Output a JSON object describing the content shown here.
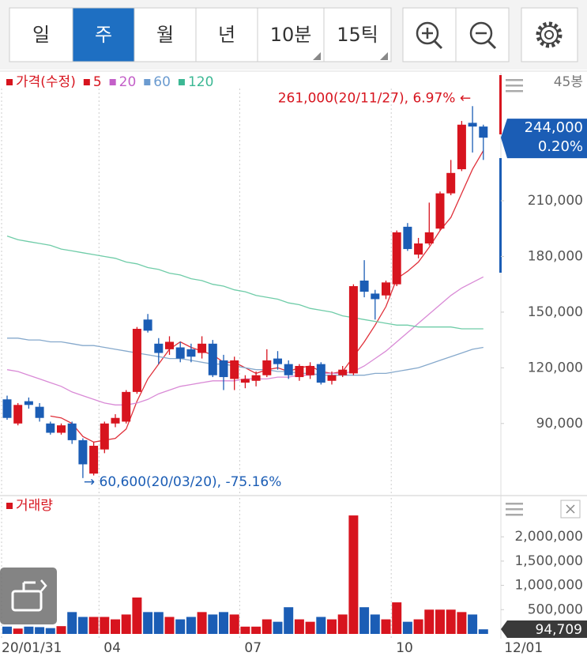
{
  "tabs": [
    {
      "label": "일"
    },
    {
      "label": "주"
    },
    {
      "label": "월"
    },
    {
      "label": "년"
    },
    {
      "label": "10분",
      "dropdown": true
    },
    {
      "label": "15틱",
      "dropdown": true
    }
  ],
  "active_tab": 1,
  "chart_data": [
    {
      "type": "candlestick",
      "name": "가격(수정)",
      "bar_count_label": "45봉",
      "up_color": "#d7141e",
      "down_color": "#1b5db5",
      "open": [
        103000,
        90000,
        102000,
        99000,
        90000,
        85000,
        90000,
        81000,
        63000,
        76000,
        90000,
        91000,
        107000,
        146000,
        133000,
        130000,
        131000,
        130000,
        128000,
        133000,
        124000,
        114000,
        112000,
        113000,
        116000,
        125000,
        122000,
        115000,
        116000,
        122000,
        113000,
        116000,
        117000,
        167000,
        160000,
        159000,
        165000,
        196000,
        181000,
        187000,
        195000,
        214000,
        227000,
        252000,
        250000
      ],
      "high": [
        105000,
        101000,
        104000,
        101000,
        91000,
        90000,
        91000,
        82000,
        80000,
        91000,
        95000,
        108000,
        142000,
        149000,
        136000,
        137000,
        134000,
        133000,
        137000,
        135000,
        127000,
        126000,
        116000,
        118000,
        130000,
        129000,
        124000,
        122000,
        123000,
        123000,
        118000,
        121000,
        165000,
        178000,
        162000,
        167000,
        194000,
        198000,
        190000,
        209000,
        215000,
        232000,
        253000,
        261000,
        251000
      ],
      "low": [
        92000,
        89000,
        98000,
        91000,
        84000,
        84000,
        79000,
        60600,
        62000,
        74000,
        88000,
        90000,
        106000,
        139000,
        122000,
        127000,
        123000,
        123000,
        125000,
        115000,
        108000,
        108000,
        109000,
        110000,
        115000,
        119000,
        114000,
        113000,
        114000,
        111000,
        111000,
        115000,
        116000,
        158000,
        146000,
        157000,
        164000,
        183000,
        179000,
        186000,
        194000,
        213000,
        226000,
        236000,
        232000
      ],
      "close": [
        93000,
        100000,
        100000,
        93000,
        85000,
        89000,
        81000,
        68000,
        78000,
        90000,
        93000,
        107000,
        141000,
        140000,
        128000,
        134000,
        125000,
        126000,
        133000,
        116000,
        115000,
        124000,
        114000,
        116000,
        124000,
        122000,
        116000,
        121000,
        121000,
        112000,
        116000,
        119000,
        164000,
        161000,
        157000,
        166000,
        193000,
        184000,
        187000,
        193000,
        214000,
        225000,
        251000,
        250000,
        244000
      ],
      "series": [
        {
          "name": "5",
          "color": "#e0303a",
          "legend_color": "#d7141e",
          "values": [
            null,
            null,
            null,
            null,
            94000,
            93000,
            90000,
            83000,
            80000,
            81000,
            82000,
            87000,
            102000,
            114000,
            122000,
            130000,
            134000,
            131000,
            129000,
            127000,
            123000,
            123000,
            120000,
            117000,
            119000,
            120000,
            118000,
            120000,
            121000,
            118000,
            117000,
            118000,
            126000,
            134000,
            143000,
            153000,
            168000,
            172000,
            177000,
            185000,
            194000,
            201000,
            214000,
            227000,
            237000
          ]
        },
        {
          "name": "20",
          "color": "#d98ad6",
          "legend_color": "#c35fc8",
          "values": [
            119000,
            118000,
            116000,
            114000,
            112000,
            110000,
            107000,
            105000,
            103000,
            101000,
            100000,
            100000,
            101000,
            103000,
            106000,
            108000,
            110000,
            111000,
            112000,
            113000,
            113000,
            113000,
            114000,
            114000,
            114000,
            115000,
            115000,
            116000,
            116000,
            117000,
            117000,
            117000,
            118000,
            121000,
            125000,
            129000,
            134000,
            139000,
            144000,
            149000,
            154000,
            159000,
            163000,
            166000,
            169000
          ]
        },
        {
          "name": "60",
          "color": "#86a9cc",
          "legend_color": "#6b9bd0",
          "values": [
            136000,
            136000,
            135000,
            135000,
            134000,
            134000,
            133000,
            132000,
            132000,
            131000,
            130000,
            129000,
            128000,
            127000,
            126000,
            125000,
            125000,
            124000,
            123000,
            122000,
            122000,
            121000,
            120000,
            119000,
            119000,
            118000,
            118000,
            117000,
            117000,
            116000,
            116000,
            116000,
            116000,
            116000,
            117000,
            117000,
            118000,
            119000,
            120000,
            122000,
            124000,
            126000,
            128000,
            130000,
            131000
          ]
        },
        {
          "name": "120",
          "color": "#6fcca8",
          "legend_color": "#3cb894",
          "values": [
            191000,
            189000,
            188000,
            187000,
            186000,
            184000,
            183000,
            182000,
            181000,
            180000,
            179000,
            177000,
            176000,
            174000,
            173000,
            171000,
            170000,
            168000,
            167000,
            165000,
            164000,
            162000,
            161000,
            159000,
            158000,
            157000,
            155000,
            154000,
            152000,
            151000,
            150000,
            148000,
            147000,
            146000,
            145000,
            144000,
            143000,
            143000,
            142000,
            142000,
            142000,
            142000,
            141000,
            141000,
            141000
          ]
        }
      ],
      "ylim": [
        52000,
        279000
      ],
      "yticks": [
        {
          "value": 90000,
          "label": "90,000"
        },
        {
          "value": 120000,
          "label": "120,000"
        },
        {
          "value": 150000,
          "label": "150,000"
        },
        {
          "value": 180000,
          "label": "180,000"
        },
        {
          "value": 210000,
          "label": "210,000"
        }
      ],
      "price_tag": "244,000",
      "change_tag": "0.20%",
      "high_annotation": "261,000(20/11/27), 6.97% ←",
      "low_annotation": "→ 60,600(20/03/20), -75.16%"
    },
    {
      "type": "bar",
      "name": "거래량",
      "color": "#d7141e",
      "values": [
        150000,
        110000,
        150000,
        140000,
        120000,
        160000,
        450000,
        350000,
        350000,
        350000,
        300000,
        400000,
        750000,
        450000,
        450000,
        350000,
        300000,
        350000,
        450000,
        400000,
        450000,
        400000,
        150000,
        150000,
        300000,
        250000,
        550000,
        300000,
        250000,
        350000,
        300000,
        400000,
        2440000,
        550000,
        400000,
        300000,
        650000,
        250000,
        300000,
        500000,
        500000,
        500000,
        450000,
        400000,
        94709
      ],
      "ylim": [
        0,
        2800000
      ],
      "yticks": [
        {
          "value": 500000,
          "label": "500,000"
        },
        {
          "value": 1000000,
          "label": "1,000,000"
        },
        {
          "value": 1500000,
          "label": "1,500,000"
        },
        {
          "value": 2000000,
          "label": "2,000,000"
        }
      ],
      "current_label": "94,709",
      "xticks": [
        {
          "value": 0,
          "label": "20/01/31"
        },
        {
          "value": 9,
          "label": "04"
        },
        {
          "value": 22,
          "label": "07"
        },
        {
          "value": 36,
          "label": "10"
        },
        {
          "value": 46,
          "label": "12/01"
        }
      ],
      "grid": "x"
    }
  ]
}
